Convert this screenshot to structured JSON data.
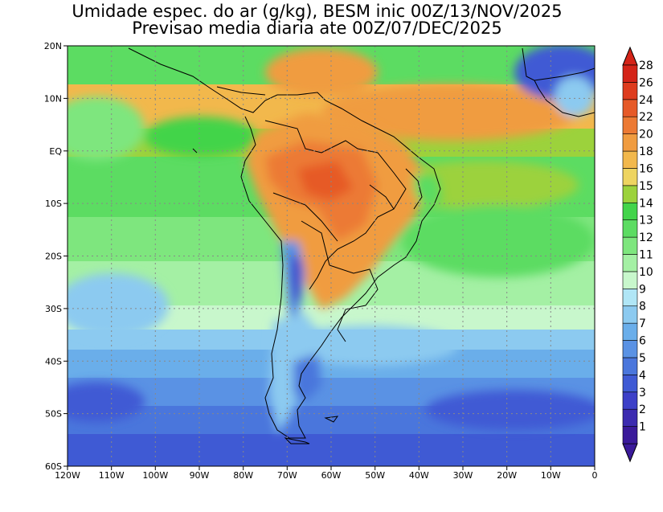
{
  "title": {
    "line1": "Umidade espec. do ar (g/kg), BESM inic 00Z/13/NOV/2025",
    "line2": "Previsao media diaria ate 00Z/07/DEC/2025"
  },
  "map": {
    "lon_labels": [
      "120W",
      "110W",
      "100W",
      "90W",
      "80W",
      "70W",
      "60W",
      "50W",
      "40W",
      "30W",
      "20W",
      "10W",
      "0"
    ],
    "lat_labels": [
      "20N",
      "10N",
      "EQ",
      "10S",
      "20S",
      "30S",
      "40S",
      "50S",
      "60S"
    ],
    "lon_range": [
      -120,
      0
    ],
    "lat_range": [
      -60,
      20
    ],
    "grid": true
  },
  "colorbar": {
    "labels": [
      "1",
      "2",
      "3",
      "4",
      "5",
      "6",
      "7",
      "8",
      "9",
      "10",
      "11",
      "12",
      "13",
      "14",
      "15",
      "16",
      "18",
      "20",
      "22",
      "24",
      "26",
      "28"
    ],
    "colors": [
      "#3a1a9a",
      "#3c2bb0",
      "#3d40c8",
      "#3f5ad4",
      "#4a76dc",
      "#5a92e4",
      "#6aaeea",
      "#8ccaf0",
      "#b0e6f6",
      "#c8f7cc",
      "#a4f0a4",
      "#7ee67e",
      "#5cdc62",
      "#42d44a",
      "#9cd23c",
      "#eed460",
      "#f2b84c",
      "#f09c40",
      "#ec7a34",
      "#e65a28",
      "#de3c1e",
      "#d42418"
    ]
  }
}
